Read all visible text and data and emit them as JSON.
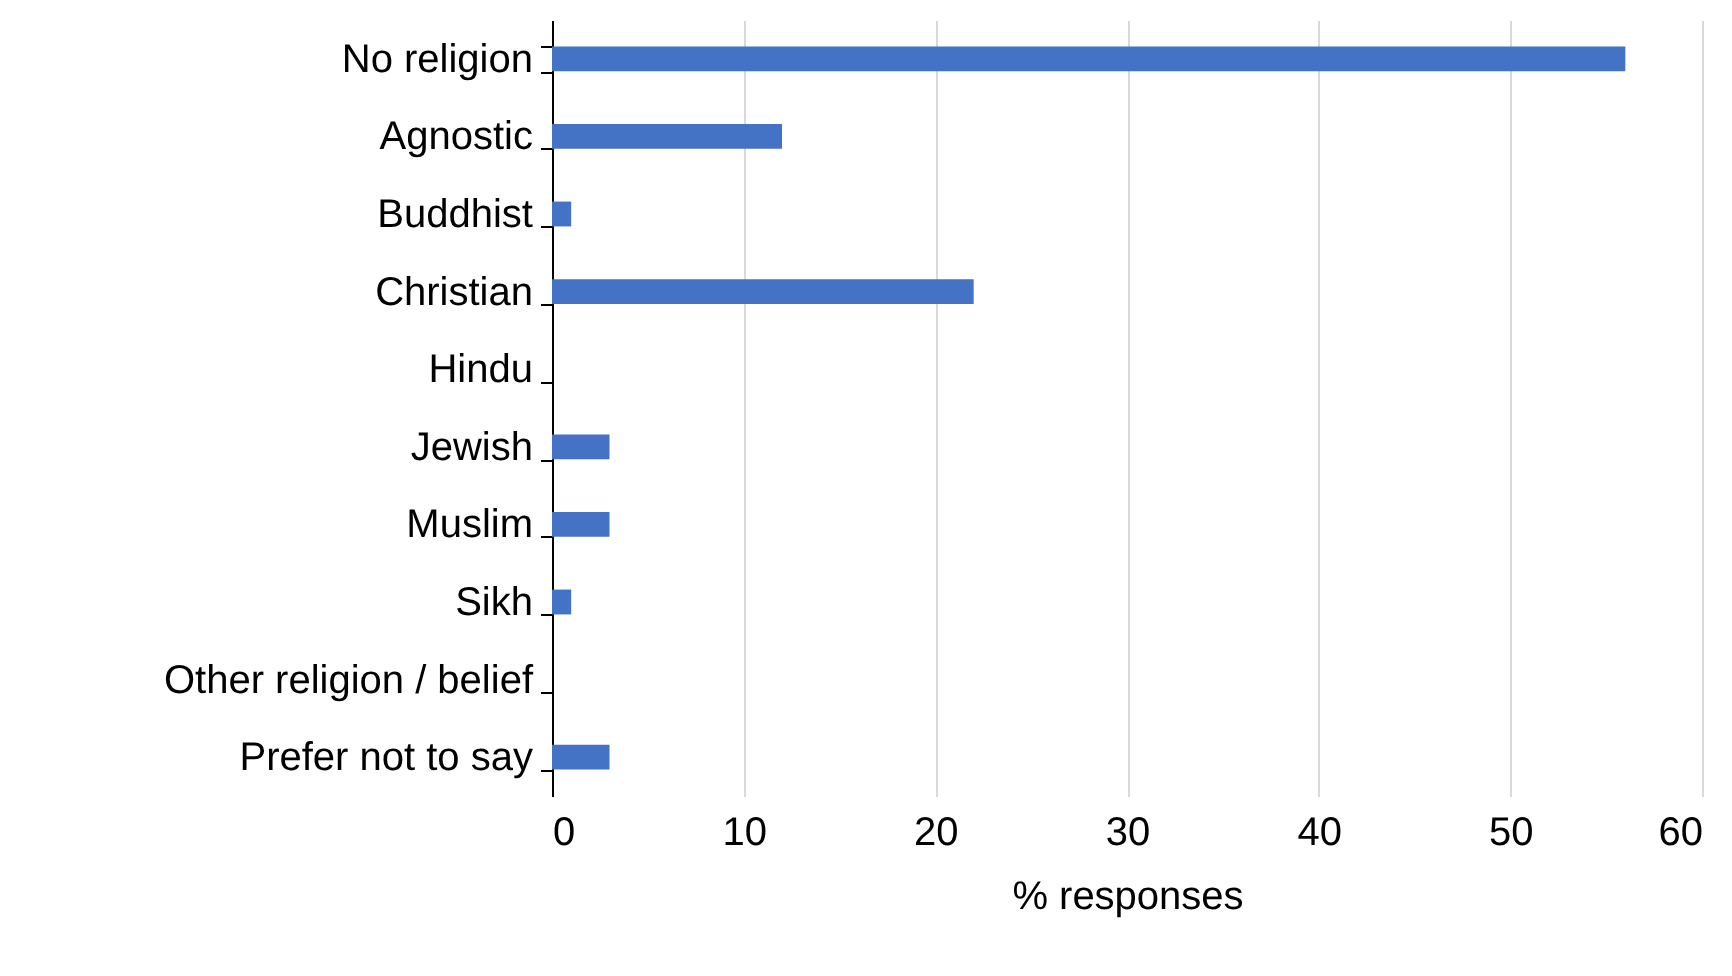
{
  "chart_data": {
    "type": "bar",
    "orientation": "horizontal",
    "xlabel": "% responses",
    "categories": [
      "No religion",
      "Agnostic",
      "Buddhist",
      "Christian",
      "Hindu",
      "Jewish",
      "Muslim",
      "Sikh",
      "Other religion / belief",
      "Prefer not to say"
    ],
    "values": [
      56,
      12,
      1,
      22,
      0,
      3,
      3,
      1,
      0,
      3
    ],
    "color": "#4472c4",
    "xlim": [
      0,
      60
    ],
    "xticks": [
      0,
      10,
      20,
      30,
      40,
      50,
      60
    ],
    "grid": "x"
  }
}
